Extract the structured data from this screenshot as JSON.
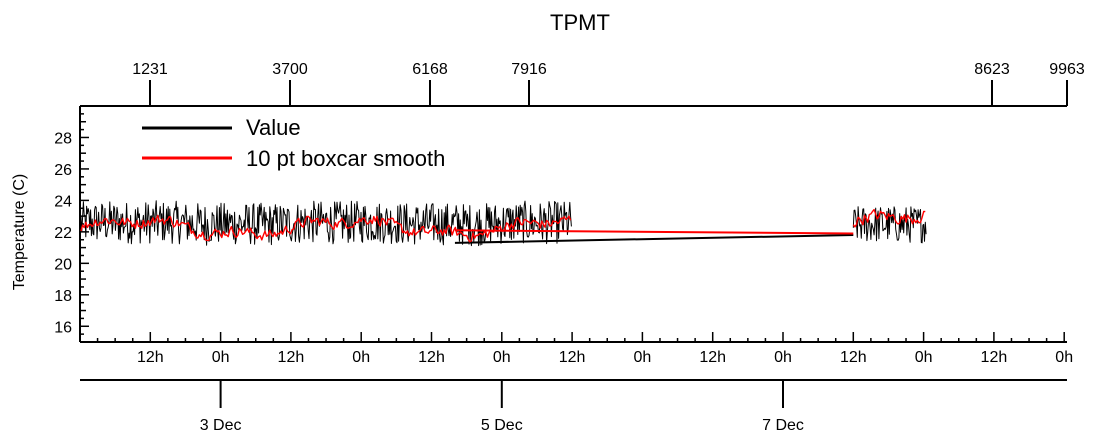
{
  "chart_data": {
    "type": "line",
    "title": "TPMT",
    "ylabel": "Temperature (C)",
    "ylim": [
      15,
      30
    ],
    "y_ticks": [
      16,
      18,
      20,
      22,
      24,
      26,
      28
    ],
    "top_axis_ticks": [
      "1231",
      "3700",
      "6168",
      "7916",
      "8623",
      "9963"
    ],
    "bottom_hour_ticks": [
      "12h",
      "0h",
      "12h",
      "0h",
      "12h",
      "0h",
      "12h",
      "0h",
      "12h",
      "0h",
      "12h",
      "0h",
      "12h",
      "0h"
    ],
    "bottom_date_ticks": [
      "3 Dec",
      "5 Dec",
      "7 Dec"
    ],
    "legend_placement": "top-left",
    "series": [
      {
        "name": "Value",
        "color": "#000000",
        "segments": [
          {
            "x": [
              "2 Dec 00:00",
              "5 Dec 12:00"
            ],
            "y_center": 22.3,
            "y_spread": [
              21.0,
              24.2
            ]
          },
          {
            "x": [
              "7 Dec 12:00",
              "8 Dec 00:30"
            ],
            "y_center": 22.6,
            "y_spread": [
              21.0,
              23.8
            ]
          }
        ],
        "gap_line": {
          "x": [
            "4 Dec 16:00",
            "7 Dec 12:00"
          ],
          "y": [
            21.3,
            21.8
          ]
        }
      },
      {
        "name": "10 pt boxcar smooth",
        "color": "#ff0000",
        "segments": [
          {
            "x": [
              "2 Dec 00:00",
              "5 Dec 12:00"
            ],
            "y_center": 22.3,
            "y_spread": [
              21.5,
              23.3
            ]
          },
          {
            "x": [
              "7 Dec 12:00",
              "8 Dec 00:30"
            ],
            "y_center": 22.6,
            "y_spread": [
              21.6,
              23.5
            ]
          }
        ],
        "gap_line": {
          "x": [
            "4 Dec 16:00",
            "7 Dec 12:00"
          ],
          "y": [
            22.1,
            21.9
          ]
        }
      }
    ]
  }
}
